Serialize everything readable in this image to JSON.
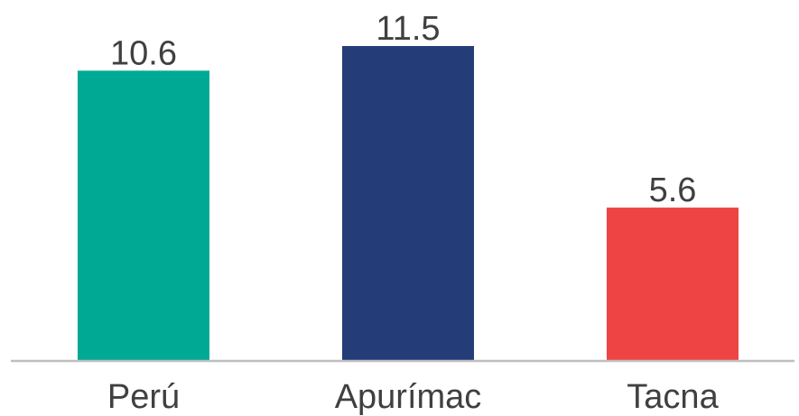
{
  "chart_data": {
    "type": "bar",
    "categories": [
      "Perú",
      "Apurímac",
      "Tacna"
    ],
    "values": [
      10.6,
      11.5,
      5.6
    ],
    "value_labels": [
      "10.6",
      "11.5",
      "5.6"
    ],
    "colors": [
      "#00a994",
      "#243c78",
      "#ef4444"
    ],
    "baseline_color": "#bfbfbf",
    "title": "",
    "xlabel": "",
    "ylabel": "",
    "ylim": [
      0,
      11.5
    ],
    "grid": false,
    "legend": "none"
  }
}
